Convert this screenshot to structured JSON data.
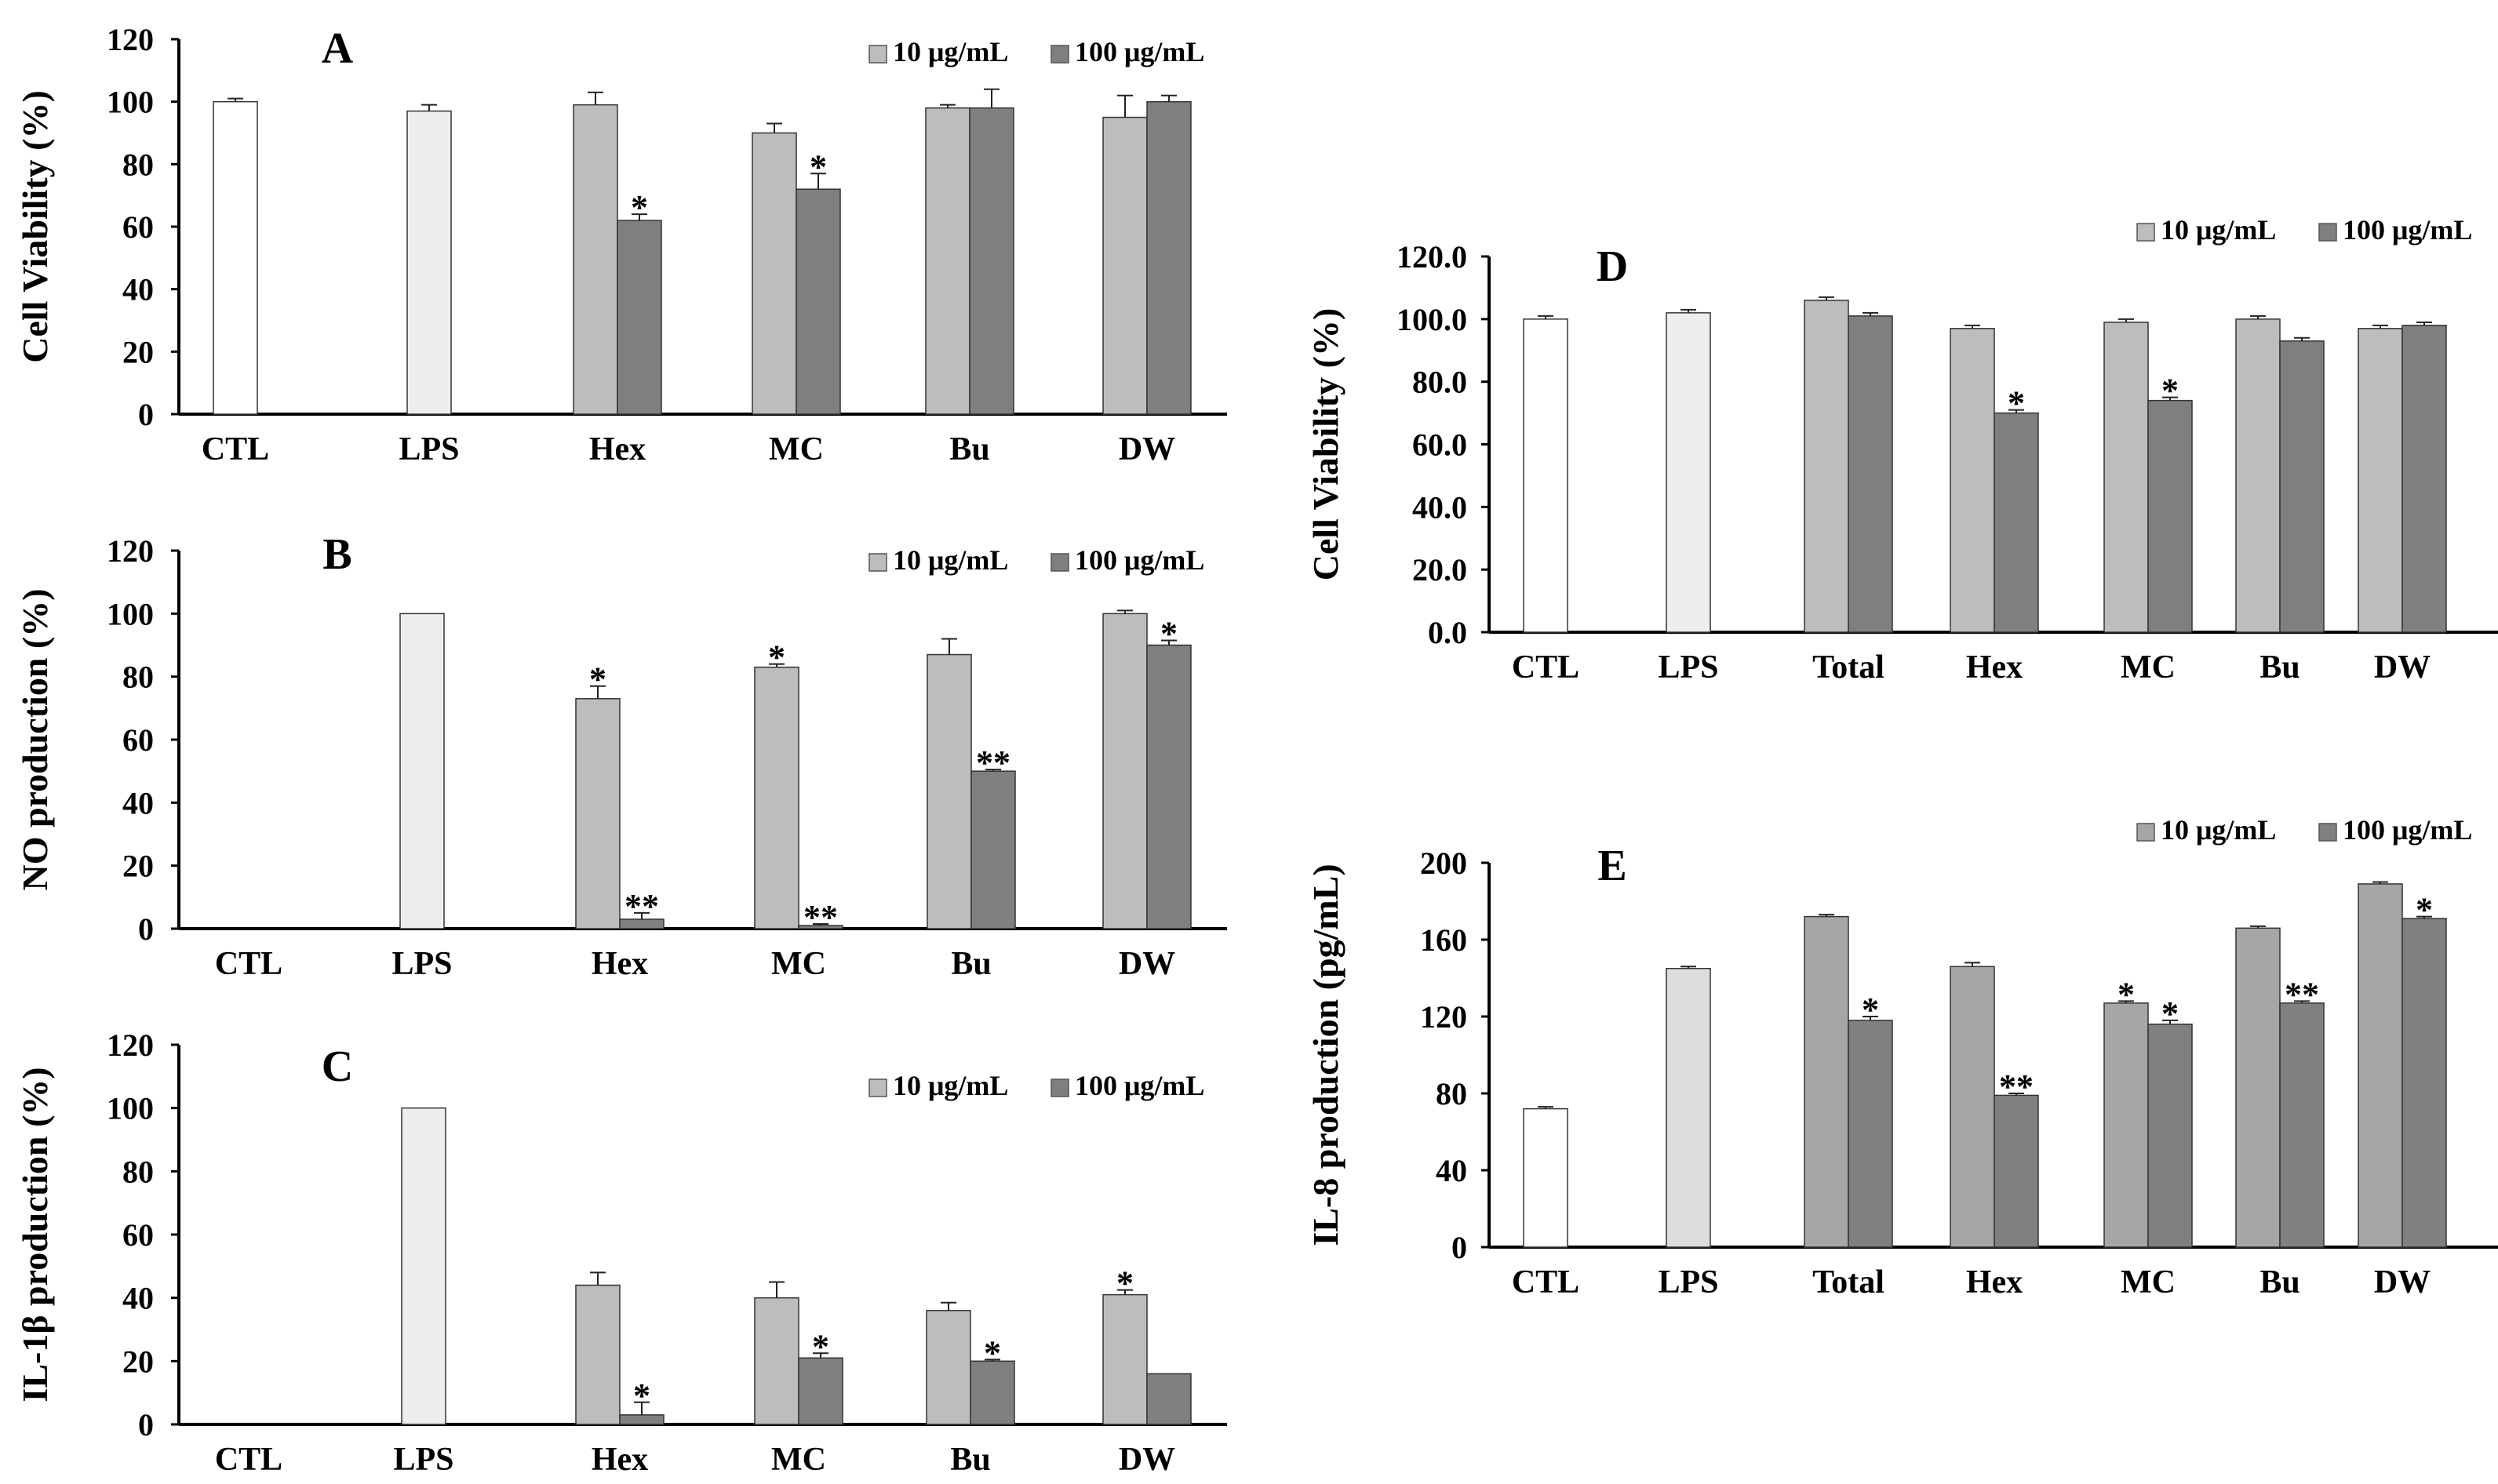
{
  "colors": {
    "ctl": "#ffffff",
    "lps": "#eeeeee",
    "lps_alt": "#dddddd",
    "low": "#bdbdbd",
    "high": "#7f7f7f",
    "low_e": "#a6a6a6",
    "high_e": "#808080",
    "axis": "#000000"
  },
  "chart_data": [
    {
      "panel": "A",
      "type": "bar",
      "ylabel": "Cell Viability (%)",
      "ylim": [
        0,
        120
      ],
      "ticks": [
        "0",
        "20",
        "40",
        "60",
        "80",
        "100",
        "120"
      ],
      "tick_values": [
        0,
        20,
        40,
        60,
        80,
        100,
        120
      ],
      "legend": [
        "10 μg/mL",
        "100 μg/mL"
      ],
      "groups": [
        {
          "label": "CTL",
          "bars": [
            {
              "kind": "ctl",
              "value": 100,
              "err": 1,
              "sig": ""
            }
          ]
        },
        {
          "label": "LPS",
          "bars": [
            {
              "kind": "lps",
              "value": 97,
              "err": 2,
              "sig": ""
            }
          ]
        },
        {
          "label": "Hex",
          "bars": [
            {
              "kind": "low",
              "value": 99,
              "err": 4,
              "sig": ""
            },
            {
              "kind": "high",
              "value": 62,
              "err": 2,
              "sig": "*"
            }
          ]
        },
        {
          "label": "MC",
          "bars": [
            {
              "kind": "low",
              "value": 90,
              "err": 3,
              "sig": ""
            },
            {
              "kind": "high",
              "value": 72,
              "err": 5,
              "sig": "*"
            }
          ]
        },
        {
          "label": "Bu",
          "bars": [
            {
              "kind": "low",
              "value": 98,
              "err": 1,
              "sig": ""
            },
            {
              "kind": "high",
              "value": 98,
              "err": 6,
              "sig": ""
            }
          ]
        },
        {
          "label": "DW",
          "bars": [
            {
              "kind": "low",
              "value": 95,
              "err": 7,
              "sig": ""
            },
            {
              "kind": "high",
              "value": 100,
              "err": 2,
              "sig": ""
            }
          ]
        }
      ]
    },
    {
      "panel": "B",
      "type": "bar",
      "ylabel": "NO production (%)",
      "ylim": [
        0,
        120
      ],
      "ticks": [
        "0",
        "20",
        "40",
        "60",
        "80",
        "100",
        "120"
      ],
      "tick_values": [
        0,
        20,
        40,
        60,
        80,
        100,
        120
      ],
      "legend": [
        "10 μg/mL",
        "100 μg/mL"
      ],
      "groups": [
        {
          "label": "CTL",
          "bars": []
        },
        {
          "label": "LPS",
          "bars": [
            {
              "kind": "lps",
              "value": 100,
              "err": 0,
              "sig": ""
            }
          ]
        },
        {
          "label": "Hex",
          "bars": [
            {
              "kind": "low",
              "value": 73,
              "err": 4,
              "sig": "*"
            },
            {
              "kind": "high",
              "value": 3,
              "err": 2,
              "sig": "**"
            }
          ]
        },
        {
          "label": "MC",
          "bars": [
            {
              "kind": "low",
              "value": 83,
              "err": 1,
              "sig": "*"
            },
            {
              "kind": "high",
              "value": 1,
              "err": 0.5,
              "sig": "**"
            }
          ]
        },
        {
          "label": "Bu",
          "bars": [
            {
              "kind": "low",
              "value": 87,
              "err": 5,
              "sig": ""
            },
            {
              "kind": "high",
              "value": 50,
              "err": 0.5,
              "sig": "**"
            }
          ]
        },
        {
          "label": "DW",
          "bars": [
            {
              "kind": "low",
              "value": 100,
              "err": 1,
              "sig": ""
            },
            {
              "kind": "high",
              "value": 90,
              "err": 1.5,
              "sig": "*"
            }
          ]
        }
      ]
    },
    {
      "panel": "C",
      "type": "bar",
      "ylabel": "IL-1β production (%)",
      "ylim": [
        0,
        120
      ],
      "ticks": [
        "0",
        "20",
        "40",
        "60",
        "80",
        "100",
        "120"
      ],
      "tick_values": [
        0,
        20,
        40,
        60,
        80,
        100,
        120
      ],
      "legend": [
        "10 μg/mL",
        "100 μg/mL"
      ],
      "groups": [
        {
          "label": "CTL",
          "bars": []
        },
        {
          "label": "LPS",
          "bars": [
            {
              "kind": "lps",
              "value": 100,
              "err": 0,
              "sig": ""
            }
          ]
        },
        {
          "label": "Hex",
          "bars": [
            {
              "kind": "low",
              "value": 44,
              "err": 4,
              "sig": ""
            },
            {
              "kind": "high",
              "value": 3,
              "err": 4,
              "sig": "*"
            }
          ]
        },
        {
          "label": "MC",
          "bars": [
            {
              "kind": "low",
              "value": 40,
              "err": 5,
              "sig": ""
            },
            {
              "kind": "high",
              "value": 21,
              "err": 1.5,
              "sig": "*"
            }
          ]
        },
        {
          "label": "Bu",
          "bars": [
            {
              "kind": "low",
              "value": 36,
              "err": 2.5,
              "sig": ""
            },
            {
              "kind": "high",
              "value": 20,
              "err": 0.5,
              "sig": "*"
            }
          ]
        },
        {
          "label": "DW",
          "bars": [
            {
              "kind": "low",
              "value": 41,
              "err": 1.5,
              "sig": "*"
            },
            {
              "kind": "high",
              "value": 16,
              "err": 0,
              "sig": ""
            }
          ]
        }
      ]
    },
    {
      "panel": "D",
      "type": "bar",
      "ylabel": "Cell Viability (%)",
      "ylim": [
        0,
        120
      ],
      "ticks": [
        "0.0",
        "20.0",
        "40.0",
        "60.0",
        "80.0",
        "100.0",
        "120.0"
      ],
      "tick_values": [
        0,
        20,
        40,
        60,
        80,
        100,
        120
      ],
      "legend": [
        "10 μg/mL",
        "100 μg/mL"
      ],
      "groups": [
        {
          "label": "CTL",
          "bars": [
            {
              "kind": "ctl",
              "value": 100,
              "err": 1,
              "sig": ""
            }
          ]
        },
        {
          "label": "LPS",
          "bars": [
            {
              "kind": "lps",
              "value": 102,
              "err": 1,
              "sig": ""
            }
          ]
        },
        {
          "label": "Total",
          "bars": [
            {
              "kind": "low",
              "value": 106,
              "err": 1,
              "sig": ""
            },
            {
              "kind": "high",
              "value": 101,
              "err": 1,
              "sig": ""
            }
          ]
        },
        {
          "label": "Hex",
          "bars": [
            {
              "kind": "low",
              "value": 97,
              "err": 1,
              "sig": ""
            },
            {
              "kind": "high",
              "value": 70,
              "err": 1,
              "sig": "*"
            }
          ]
        },
        {
          "label": "MC",
          "bars": [
            {
              "kind": "low",
              "value": 99,
              "err": 1,
              "sig": ""
            },
            {
              "kind": "high",
              "value": 74,
              "err": 1,
              "sig": "*"
            }
          ]
        },
        {
          "label": "Bu",
          "bars": [
            {
              "kind": "low",
              "value": 100,
              "err": 1,
              "sig": ""
            },
            {
              "kind": "high",
              "value": 93,
              "err": 1,
              "sig": ""
            }
          ]
        },
        {
          "label": "DW",
          "bars": [
            {
              "kind": "low",
              "value": 97,
              "err": 1,
              "sig": ""
            },
            {
              "kind": "high",
              "value": 98,
              "err": 1,
              "sig": ""
            }
          ]
        }
      ]
    },
    {
      "panel": "E",
      "type": "bar",
      "ylabel": "IL-8 production (pg/mL)",
      "ylim": [
        0,
        200
      ],
      "ticks": [
        "0",
        "40",
        "80",
        "120",
        "160",
        "200"
      ],
      "tick_values": [
        0,
        40,
        80,
        120,
        160,
        200
      ],
      "legend": [
        "10 μg/mL",
        "100 μg/mL"
      ],
      "groups": [
        {
          "label": "CTL",
          "bars": [
            {
              "kind": "ctl",
              "value": 72,
              "err": 1,
              "sig": ""
            }
          ]
        },
        {
          "label": "LPS",
          "bars": [
            {
              "kind": "lps_alt",
              "value": 145,
              "err": 1,
              "sig": ""
            }
          ]
        },
        {
          "label": "Total",
          "bars": [
            {
              "kind": "low_e",
              "value": 172,
              "err": 1,
              "sig": ""
            },
            {
              "kind": "high_e",
              "value": 118,
              "err": 2,
              "sig": "*"
            }
          ]
        },
        {
          "label": "Hex",
          "bars": [
            {
              "kind": "low_e",
              "value": 146,
              "err": 2,
              "sig": ""
            },
            {
              "kind": "high_e",
              "value": 79,
              "err": 1,
              "sig": "**"
            }
          ]
        },
        {
          "label": "MC",
          "bars": [
            {
              "kind": "low_e",
              "value": 127,
              "err": 1,
              "sig": "*"
            },
            {
              "kind": "high_e",
              "value": 116,
              "err": 2,
              "sig": "*"
            }
          ]
        },
        {
          "label": "Bu",
          "bars": [
            {
              "kind": "low_e",
              "value": 166,
              "err": 1,
              "sig": ""
            },
            {
              "kind": "high_e",
              "value": 127,
              "err": 1,
              "sig": "**"
            }
          ]
        },
        {
          "label": "DW",
          "bars": [
            {
              "kind": "low_e",
              "value": 189,
              "err": 1,
              "sig": ""
            },
            {
              "kind": "high_e",
              "value": 171,
              "err": 1,
              "sig": "*"
            }
          ]
        }
      ]
    }
  ]
}
